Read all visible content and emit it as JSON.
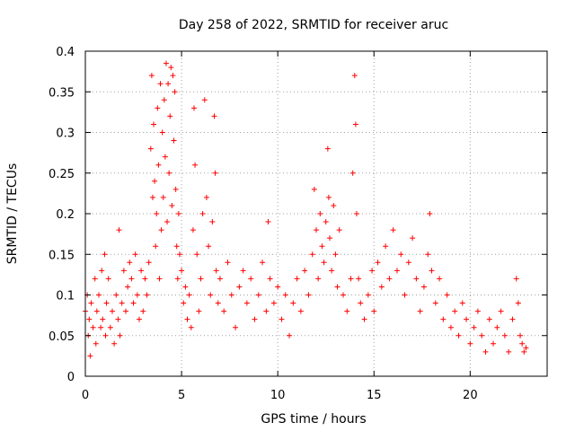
{
  "chart_data": {
    "type": "scatter",
    "title": "Day 258 of 2022, SRMTID for receiver aruc",
    "xlabel": "GPS time / hours",
    "ylabel": "SRMTID / TECUs",
    "xlim": [
      0,
      24
    ],
    "ylim": [
      0,
      0.4
    ],
    "xticks": [
      0,
      5,
      10,
      15,
      20
    ],
    "xtick_labels": [
      "0",
      "5",
      "10",
      "15",
      "20"
    ],
    "yticks": [
      0,
      0.05,
      0.1,
      0.15,
      0.2,
      0.25,
      0.3,
      0.35,
      0.4
    ],
    "ytick_labels": [
      "0",
      "0.05",
      "0.1",
      "0.15",
      "0.2",
      "0.25",
      "0.3",
      "0.35",
      "0.4"
    ],
    "grid": true,
    "marker": "plus",
    "marker_color": "#ff0000",
    "series": [
      {
        "name": "SRMTID",
        "points": [
          [
            0.0,
            0.08
          ],
          [
            0.1,
            0.1
          ],
          [
            0.15,
            0.05
          ],
          [
            0.2,
            0.07
          ],
          [
            0.25,
            0.025
          ],
          [
            0.3,
            0.09
          ],
          [
            0.4,
            0.06
          ],
          [
            0.5,
            0.12
          ],
          [
            0.55,
            0.04
          ],
          [
            0.6,
            0.08
          ],
          [
            0.7,
            0.1
          ],
          [
            0.8,
            0.06
          ],
          [
            0.85,
            0.13
          ],
          [
            0.9,
            0.07
          ],
          [
            1.0,
            0.15
          ],
          [
            1.05,
            0.05
          ],
          [
            1.1,
            0.09
          ],
          [
            1.2,
            0.12
          ],
          [
            1.3,
            0.06
          ],
          [
            1.4,
            0.08
          ],
          [
            1.5,
            0.04
          ],
          [
            1.6,
            0.1
          ],
          [
            1.7,
            0.07
          ],
          [
            1.75,
            0.18
          ],
          [
            1.8,
            0.05
          ],
          [
            1.9,
            0.09
          ],
          [
            2.0,
            0.13
          ],
          [
            2.1,
            0.08
          ],
          [
            2.2,
            0.11
          ],
          [
            2.3,
            0.14
          ],
          [
            2.4,
            0.12
          ],
          [
            2.5,
            0.09
          ],
          [
            2.6,
            0.15
          ],
          [
            2.7,
            0.1
          ],
          [
            2.8,
            0.07
          ],
          [
            2.9,
            0.13
          ],
          [
            3.0,
            0.08
          ],
          [
            3.1,
            0.12
          ],
          [
            3.2,
            0.1
          ],
          [
            3.3,
            0.14
          ],
          [
            3.4,
            0.28
          ],
          [
            3.45,
            0.37
          ],
          [
            3.5,
            0.22
          ],
          [
            3.55,
            0.31
          ],
          [
            3.6,
            0.24
          ],
          [
            3.65,
            0.16
          ],
          [
            3.7,
            0.2
          ],
          [
            3.75,
            0.33
          ],
          [
            3.8,
            0.26
          ],
          [
            3.85,
            0.12
          ],
          [
            3.9,
            0.36
          ],
          [
            3.95,
            0.18
          ],
          [
            4.0,
            0.3
          ],
          [
            4.05,
            0.22
          ],
          [
            4.1,
            0.34
          ],
          [
            4.15,
            0.27
          ],
          [
            4.2,
            0.385
          ],
          [
            4.25,
            0.19
          ],
          [
            4.3,
            0.36
          ],
          [
            4.35,
            0.25
          ],
          [
            4.4,
            0.32
          ],
          [
            4.45,
            0.38
          ],
          [
            4.5,
            0.21
          ],
          [
            4.55,
            0.37
          ],
          [
            4.6,
            0.29
          ],
          [
            4.65,
            0.35
          ],
          [
            4.7,
            0.23
          ],
          [
            4.75,
            0.16
          ],
          [
            4.8,
            0.12
          ],
          [
            4.85,
            0.2
          ],
          [
            4.9,
            0.15
          ],
          [
            5.0,
            0.13
          ],
          [
            5.1,
            0.09
          ],
          [
            5.2,
            0.11
          ],
          [
            5.3,
            0.07
          ],
          [
            5.4,
            0.1
          ],
          [
            5.5,
            0.06
          ],
          [
            5.6,
            0.18
          ],
          [
            5.65,
            0.33
          ],
          [
            5.7,
            0.26
          ],
          [
            5.8,
            0.15
          ],
          [
            5.9,
            0.08
          ],
          [
            6.0,
            0.12
          ],
          [
            6.1,
            0.2
          ],
          [
            6.2,
            0.34
          ],
          [
            6.3,
            0.22
          ],
          [
            6.4,
            0.16
          ],
          [
            6.5,
            0.1
          ],
          [
            6.6,
            0.19
          ],
          [
            6.7,
            0.32
          ],
          [
            6.75,
            0.25
          ],
          [
            6.8,
            0.13
          ],
          [
            6.9,
            0.09
          ],
          [
            7.0,
            0.12
          ],
          [
            7.2,
            0.08
          ],
          [
            7.4,
            0.14
          ],
          [
            7.6,
            0.1
          ],
          [
            7.8,
            0.06
          ],
          [
            8.0,
            0.11
          ],
          [
            8.2,
            0.13
          ],
          [
            8.4,
            0.09
          ],
          [
            8.6,
            0.12
          ],
          [
            8.8,
            0.07
          ],
          [
            9.0,
            0.1
          ],
          [
            9.2,
            0.14
          ],
          [
            9.4,
            0.08
          ],
          [
            9.5,
            0.19
          ],
          [
            9.6,
            0.12
          ],
          [
            9.8,
            0.09
          ],
          [
            10.0,
            0.11
          ],
          [
            10.2,
            0.07
          ],
          [
            10.4,
            0.1
          ],
          [
            10.6,
            0.05
          ],
          [
            10.8,
            0.09
          ],
          [
            11.0,
            0.12
          ],
          [
            11.2,
            0.08
          ],
          [
            11.4,
            0.13
          ],
          [
            11.6,
            0.1
          ],
          [
            11.8,
            0.15
          ],
          [
            11.9,
            0.23
          ],
          [
            12.0,
            0.18
          ],
          [
            12.1,
            0.12
          ],
          [
            12.2,
            0.2
          ],
          [
            12.3,
            0.16
          ],
          [
            12.4,
            0.14
          ],
          [
            12.5,
            0.19
          ],
          [
            12.6,
            0.28
          ],
          [
            12.65,
            0.22
          ],
          [
            12.7,
            0.17
          ],
          [
            12.8,
            0.13
          ],
          [
            12.9,
            0.21
          ],
          [
            13.0,
            0.15
          ],
          [
            13.1,
            0.11
          ],
          [
            13.2,
            0.18
          ],
          [
            13.4,
            0.1
          ],
          [
            13.6,
            0.08
          ],
          [
            13.8,
            0.12
          ],
          [
            13.9,
            0.25
          ],
          [
            14.0,
            0.37
          ],
          [
            14.05,
            0.31
          ],
          [
            14.1,
            0.2
          ],
          [
            14.2,
            0.12
          ],
          [
            14.3,
            0.09
          ],
          [
            14.5,
            0.07
          ],
          [
            14.7,
            0.1
          ],
          [
            14.9,
            0.13
          ],
          [
            15.0,
            0.08
          ],
          [
            15.2,
            0.14
          ],
          [
            15.4,
            0.11
          ],
          [
            15.6,
            0.16
          ],
          [
            15.8,
            0.12
          ],
          [
            16.0,
            0.18
          ],
          [
            16.2,
            0.13
          ],
          [
            16.4,
            0.15
          ],
          [
            16.6,
            0.1
          ],
          [
            16.8,
            0.14
          ],
          [
            17.0,
            0.17
          ],
          [
            17.2,
            0.12
          ],
          [
            17.4,
            0.08
          ],
          [
            17.6,
            0.11
          ],
          [
            17.8,
            0.15
          ],
          [
            17.9,
            0.2
          ],
          [
            18.0,
            0.13
          ],
          [
            18.2,
            0.09
          ],
          [
            18.4,
            0.12
          ],
          [
            18.6,
            0.07
          ],
          [
            18.8,
            0.1
          ],
          [
            19.0,
            0.06
          ],
          [
            19.2,
            0.08
          ],
          [
            19.4,
            0.05
          ],
          [
            19.6,
            0.09
          ],
          [
            19.8,
            0.07
          ],
          [
            20.0,
            0.04
          ],
          [
            20.2,
            0.06
          ],
          [
            20.4,
            0.08
          ],
          [
            20.6,
            0.05
          ],
          [
            20.8,
            0.03
          ],
          [
            21.0,
            0.07
          ],
          [
            21.2,
            0.04
          ],
          [
            21.4,
            0.06
          ],
          [
            21.6,
            0.08
          ],
          [
            21.8,
            0.05
          ],
          [
            22.0,
            0.03
          ],
          [
            22.2,
            0.07
          ],
          [
            22.4,
            0.12
          ],
          [
            22.5,
            0.09
          ],
          [
            22.6,
            0.05
          ],
          [
            22.7,
            0.04
          ],
          [
            22.8,
            0.03
          ],
          [
            22.9,
            0.035
          ]
        ]
      }
    ]
  }
}
